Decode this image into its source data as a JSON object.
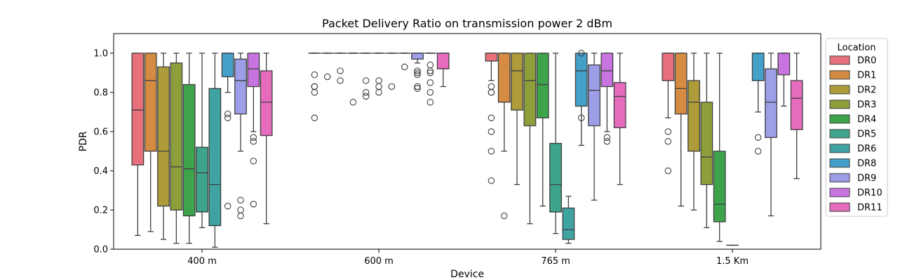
{
  "chart_data": {
    "type": "box",
    "title": "Packet Delivery Ratio on transmission power 2 dBm",
    "xlabel": "Device",
    "ylabel": "PDR",
    "ylim": [
      0,
      1.1
    ],
    "yticks": [
      "0.0",
      "0.2",
      "0.4",
      "0.6",
      "0.8",
      "1.0"
    ],
    "categories": [
      "400 m",
      "600 m",
      "765 m",
      "1.5 Km"
    ],
    "legend": {
      "title": "Location",
      "placement": "right, outside plot"
    },
    "grid": false,
    "series": [
      {
        "name": "DR0",
        "color": "#e8707c",
        "boxes": [
          {
            "cat": 0,
            "whislo": 0.07,
            "q1": 0.43,
            "med": 0.71,
            "q3": 1.0,
            "whishi": 1.0,
            "fliers": []
          },
          {
            "cat": 1,
            "whislo": 1.0,
            "q1": 1.0,
            "med": 1.0,
            "q3": 1.0,
            "whishi": 1.0,
            "fliers": [
              0.89,
              0.83,
              0.83,
              0.8,
              0.67
            ]
          },
          {
            "cat": 2,
            "whislo": 0.86,
            "q1": 0.96,
            "med": 1.0,
            "q3": 1.0,
            "whishi": 1.0,
            "fliers": [
              0.83,
              0.8,
              0.8,
              0.67,
              0.6,
              0.5,
              0.35
            ]
          },
          {
            "cat": 3,
            "whislo": 0.67,
            "q1": 0.86,
            "med": 1.0,
            "q3": 1.0,
            "whishi": 1.0,
            "fliers": [
              0.6,
              0.55,
              0.4
            ]
          }
        ]
      },
      {
        "name": "DR1",
        "color": "#d58c42",
        "boxes": [
          {
            "cat": 0,
            "whislo": 0.09,
            "q1": 0.5,
            "med": 0.86,
            "q3": 1.0,
            "whishi": 1.0,
            "fliers": []
          },
          {
            "cat": 1,
            "whislo": 1.0,
            "q1": 1.0,
            "med": 1.0,
            "q3": 1.0,
            "whishi": 1.0,
            "fliers": [
              0.88
            ]
          },
          {
            "cat": 2,
            "whislo": 0.5,
            "q1": 0.75,
            "med": 1.0,
            "q3": 1.0,
            "whishi": 1.0,
            "fliers": [
              0.17
            ]
          },
          {
            "cat": 3,
            "whislo": 0.22,
            "q1": 0.69,
            "med": 0.82,
            "q3": 1.0,
            "whishi": 1.0,
            "fliers": []
          }
        ]
      },
      {
        "name": "DR2",
        "color": "#ae9b3a",
        "boxes": [
          {
            "cat": 0,
            "whislo": 0.05,
            "q1": 0.22,
            "med": 0.5,
            "q3": 0.93,
            "whishi": 1.0,
            "fliers": []
          },
          {
            "cat": 1,
            "whislo": 1.0,
            "q1": 1.0,
            "med": 1.0,
            "q3": 1.0,
            "whishi": 1.0,
            "fliers": [
              0.91,
              0.86
            ]
          },
          {
            "cat": 2,
            "whislo": 0.33,
            "q1": 0.71,
            "med": 0.91,
            "q3": 1.0,
            "whishi": 1.0,
            "fliers": []
          },
          {
            "cat": 3,
            "whislo": 0.2,
            "q1": 0.5,
            "med": 0.75,
            "q3": 0.86,
            "whishi": 1.0,
            "fliers": []
          }
        ]
      },
      {
        "name": "DR3",
        "color": "#8c9f3b",
        "boxes": [
          {
            "cat": 0,
            "whislo": 0.03,
            "q1": 0.2,
            "med": 0.42,
            "q3": 0.95,
            "whishi": 1.0,
            "fliers": []
          },
          {
            "cat": 1,
            "whislo": 1.0,
            "q1": 1.0,
            "med": 1.0,
            "q3": 1.0,
            "whishi": 1.0,
            "fliers": [
              0.75
            ]
          },
          {
            "cat": 2,
            "whislo": 0.13,
            "q1": 0.63,
            "med": 0.86,
            "q3": 1.0,
            "whishi": 1.0,
            "fliers": []
          },
          {
            "cat": 3,
            "whislo": 0.11,
            "q1": 0.33,
            "med": 0.47,
            "q3": 0.75,
            "whishi": 1.0,
            "fliers": []
          }
        ]
      },
      {
        "name": "DR4",
        "color": "#3ea44c",
        "boxes": [
          {
            "cat": 0,
            "whislo": 0.03,
            "q1": 0.17,
            "med": 0.41,
            "q3": 0.84,
            "whishi": 1.0,
            "fliers": []
          },
          {
            "cat": 1,
            "whislo": 1.0,
            "q1": 1.0,
            "med": 1.0,
            "q3": 1.0,
            "whishi": 1.0,
            "fliers": [
              0.86,
              0.8,
              0.78
            ]
          },
          {
            "cat": 2,
            "whislo": 0.22,
            "q1": 0.67,
            "med": 0.84,
            "q3": 1.0,
            "whishi": 1.0,
            "fliers": []
          },
          {
            "cat": 3,
            "whislo": 0.04,
            "q1": 0.14,
            "med": 0.23,
            "q3": 0.5,
            "whishi": 1.0,
            "fliers": []
          }
        ]
      },
      {
        "name": "DR5",
        "color": "#3fa48c",
        "boxes": [
          {
            "cat": 0,
            "whislo": 0.11,
            "q1": 0.19,
            "med": 0.39,
            "q3": 0.52,
            "whishi": 1.0,
            "fliers": []
          },
          {
            "cat": 1,
            "whislo": 1.0,
            "q1": 1.0,
            "med": 1.0,
            "q3": 1.0,
            "whishi": 1.0,
            "fliers": [
              0.86,
              0.83,
              0.8
            ]
          },
          {
            "cat": 2,
            "whislo": 0.08,
            "q1": 0.19,
            "med": 0.33,
            "q3": 0.54,
            "whishi": 1.0,
            "fliers": []
          },
          {
            "cat": 3,
            "whislo": 0.02,
            "q1": 0.02,
            "med": 0.02,
            "q3": 0.02,
            "whishi": 0.02,
            "fliers": []
          }
        ]
      },
      {
        "name": "DR6",
        "color": "#3fa3a2",
        "boxes": [
          {
            "cat": 0,
            "whislo": 0.01,
            "q1": 0.12,
            "med": 0.33,
            "q3": 0.82,
            "whishi": 1.0,
            "fliers": []
          },
          {
            "cat": 1,
            "whislo": 1.0,
            "q1": 1.0,
            "med": 1.0,
            "q3": 1.0,
            "whishi": 1.0,
            "fliers": [
              0.83
            ]
          },
          {
            "cat": 2,
            "whislo": 0.03,
            "q1": 0.05,
            "med": 0.1,
            "q3": 0.21,
            "whishi": 0.27,
            "fliers": []
          }
        ]
      },
      {
        "name": "DR8",
        "color": "#43a0c8",
        "boxes": [
          {
            "cat": 0,
            "whislo": 0.8,
            "q1": 0.88,
            "med": 1.0,
            "q3": 1.0,
            "whishi": 1.0,
            "fliers": [
              0.69,
              0.67,
              0.22
            ]
          },
          {
            "cat": 1,
            "whislo": 1.0,
            "q1": 1.0,
            "med": 1.0,
            "q3": 1.0,
            "whishi": 1.0,
            "fliers": [
              0.93
            ]
          },
          {
            "cat": 2,
            "whislo": 0.53,
            "q1": 0.73,
            "med": 0.91,
            "q3": 1.0,
            "whishi": 1.0,
            "fliers": [
              1.0,
              0.67
            ]
          },
          {
            "cat": 3,
            "whislo": 0.7,
            "q1": 0.86,
            "med": 1.0,
            "q3": 1.0,
            "whishi": 1.0,
            "fliers": [
              0.57,
              0.5
            ]
          }
        ]
      },
      {
        "name": "DR9",
        "color": "#9d9ee8",
        "boxes": [
          {
            "cat": 0,
            "whislo": 0.5,
            "q1": 0.69,
            "med": 0.86,
            "q3": 0.97,
            "whishi": 1.0,
            "fliers": [
              0.25,
              0.2,
              0.17
            ]
          },
          {
            "cat": 1,
            "whislo": 0.95,
            "q1": 0.97,
            "med": 1.0,
            "q3": 1.0,
            "whishi": 1.0,
            "fliers": [
              0.91,
              0.9,
              0.89,
              0.83,
              0.82
            ]
          },
          {
            "cat": 2,
            "whislo": 0.25,
            "q1": 0.63,
            "med": 0.81,
            "q3": 0.94,
            "whishi": 1.0,
            "fliers": []
          },
          {
            "cat": 3,
            "whislo": 0.17,
            "q1": 0.57,
            "med": 0.75,
            "q3": 0.92,
            "whishi": 1.0,
            "fliers": []
          }
        ]
      },
      {
        "name": "DR10",
        "color": "#c874e0",
        "boxes": [
          {
            "cat": 0,
            "whislo": 0.6,
            "q1": 0.83,
            "med": 0.92,
            "q3": 1.0,
            "whishi": 1.0,
            "fliers": [
              0.57,
              0.55,
              0.45,
              0.23
            ]
          },
          {
            "cat": 1,
            "whislo": 1.0,
            "q1": 1.0,
            "med": 1.0,
            "q3": 1.0,
            "whishi": 1.0,
            "fliers": [
              0.94,
              0.91,
              0.9,
              0.85,
              0.8,
              0.75
            ]
          },
          {
            "cat": 2,
            "whislo": 0.6,
            "q1": 0.83,
            "med": 0.91,
            "q3": 1.0,
            "whishi": 1.0,
            "fliers": [
              0.57,
              0.55
            ]
          },
          {
            "cat": 3,
            "whislo": 0.73,
            "q1": 0.89,
            "med": 1.0,
            "q3": 1.0,
            "whishi": 1.0,
            "fliers": []
          }
        ]
      },
      {
        "name": "DR11",
        "color": "#e66bbd",
        "boxes": [
          {
            "cat": 0,
            "whislo": 0.13,
            "q1": 0.58,
            "med": 0.75,
            "q3": 0.91,
            "whishi": 1.0,
            "fliers": []
          },
          {
            "cat": 1,
            "whislo": 0.83,
            "q1": 0.92,
            "med": 1.0,
            "q3": 1.0,
            "whishi": 1.0,
            "fliers": []
          },
          {
            "cat": 2,
            "whislo": 0.33,
            "q1": 0.62,
            "med": 0.78,
            "q3": 0.85,
            "whishi": 1.0,
            "fliers": []
          },
          {
            "cat": 3,
            "whislo": 0.36,
            "q1": 0.61,
            "med": 0.77,
            "q3": 0.86,
            "whishi": 1.0,
            "fliers": []
          }
        ]
      }
    ]
  }
}
